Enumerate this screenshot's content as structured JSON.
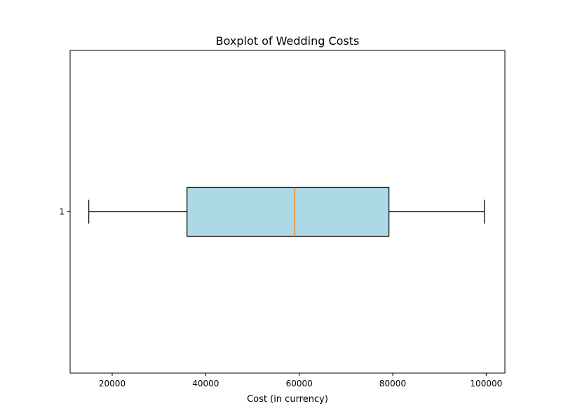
{
  "chart_data": {
    "type": "boxplot",
    "orientation": "horizontal",
    "title": "Boxplot of Wedding Costs",
    "xlabel": "Cost (in currency)",
    "ylabel": "",
    "xlim": [
      11000,
      104000
    ],
    "x_ticks": [
      20000,
      40000,
      60000,
      80000,
      100000
    ],
    "x_tick_labels": [
      "20000",
      "40000",
      "60000",
      "80000",
      "100000"
    ],
    "categories": [
      "1"
    ],
    "series": [
      {
        "whisker_low": 15000,
        "q1": 36000,
        "median": 59000,
        "q3": 79200,
        "whisker_high": 99600
      }
    ],
    "grid": false,
    "legend": "none"
  },
  "colors": {
    "box_fill": "#add8e6",
    "box_edge": "#000000",
    "median_line": "#ff7f0e",
    "whisker": "#000000",
    "axes": "#000000",
    "background": "#ffffff"
  }
}
